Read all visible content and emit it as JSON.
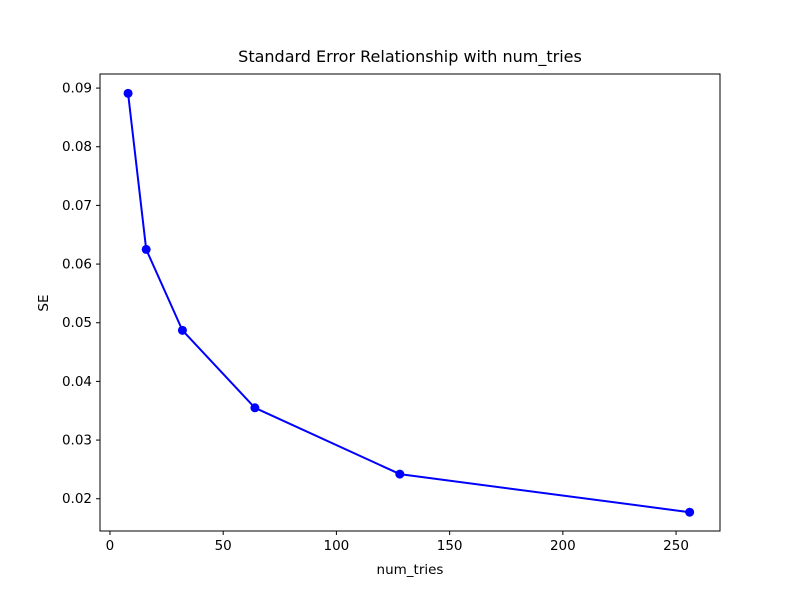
{
  "chart_data": {
    "type": "line",
    "title": "Standard Error Relationship with num_tries",
    "xlabel": "num_tries",
    "ylabel": "SE",
    "x": [
      8,
      16,
      32,
      64,
      128,
      256
    ],
    "series": [
      {
        "name": "SE",
        "values": [
          0.0891,
          0.0625,
          0.0487,
          0.0355,
          0.0242,
          0.0177
        ]
      }
    ],
    "line_color": "#0000ff",
    "marker": "circle",
    "marker_color": "#0000ff",
    "background_color": "#ffffff",
    "spine_color": "#000000",
    "xlim": [
      -4.4,
      269.4
    ],
    "ylim": [
      0.0145,
      0.0924
    ],
    "x_ticks": [
      0,
      50,
      100,
      150,
      200,
      250
    ],
    "y_ticks": [
      0.02,
      0.03,
      0.04,
      0.05,
      0.06,
      0.07,
      0.08,
      0.09
    ],
    "y_tick_decimals": 2,
    "grid": false,
    "legend_position": "none"
  }
}
